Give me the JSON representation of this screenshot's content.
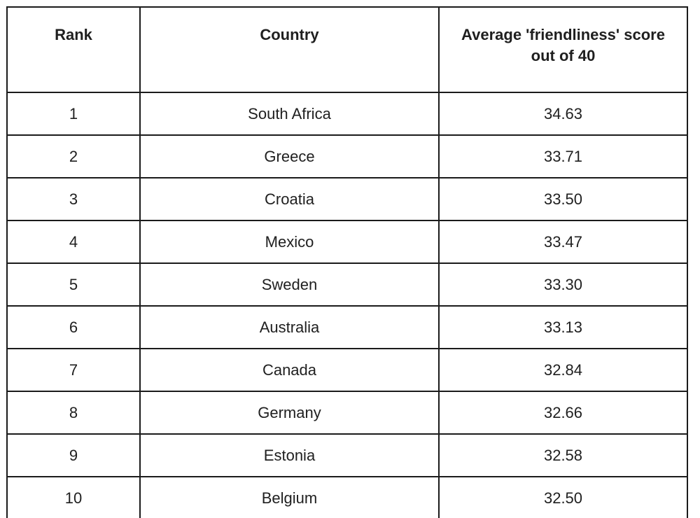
{
  "table": {
    "columns": [
      "Rank",
      "Country",
      "Average 'friendliness' score out of 40"
    ],
    "rows": [
      {
        "rank": "1",
        "country": "South Africa",
        "score": "34.63"
      },
      {
        "rank": "2",
        "country": "Greece",
        "score": "33.71"
      },
      {
        "rank": "3",
        "country": "Croatia",
        "score": "33.50"
      },
      {
        "rank": "4",
        "country": "Mexico",
        "score": "33.47"
      },
      {
        "rank": "5",
        "country": "Sweden",
        "score": "33.30"
      },
      {
        "rank": "6",
        "country": "Australia",
        "score": "33.13"
      },
      {
        "rank": "7",
        "country": "Canada",
        "score": "32.84"
      },
      {
        "rank": "8",
        "country": "Germany",
        "score": "32.66"
      },
      {
        "rank": "9",
        "country": "Estonia",
        "score": "32.58"
      },
      {
        "rank": "10",
        "country": "Belgium",
        "score": "32.50"
      }
    ]
  },
  "chart_data": {
    "type": "table",
    "title": "Average 'friendliness' score out of 40",
    "columns": [
      "Rank",
      "Country",
      "Average 'friendliness' score out of 40"
    ],
    "rows": [
      [
        1,
        "South Africa",
        34.63
      ],
      [
        2,
        "Greece",
        33.71
      ],
      [
        3,
        "Croatia",
        33.5
      ],
      [
        4,
        "Mexico",
        33.47
      ],
      [
        5,
        "Sweden",
        33.3
      ],
      [
        6,
        "Australia",
        33.13
      ],
      [
        7,
        "Canada",
        32.84
      ],
      [
        8,
        "Germany",
        32.66
      ],
      [
        9,
        "Estonia",
        32.58
      ],
      [
        10,
        "Belgium",
        32.5
      ]
    ]
  },
  "colors": {
    "border": "#1b1b1b",
    "text": "#1f1f1f",
    "background": "#ffffff"
  }
}
